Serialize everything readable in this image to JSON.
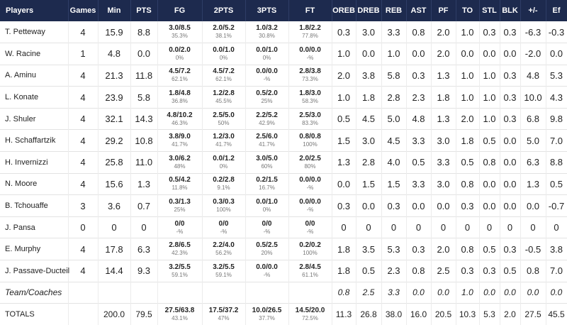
{
  "headers": [
    "Players",
    "Games",
    "Min",
    "PTS",
    "FG",
    "2PTS",
    "3PTS",
    "FT",
    "OREB",
    "DREB",
    "REB",
    "AST",
    "PF",
    "TO",
    "STL",
    "BLK",
    "+/-",
    "Ef"
  ],
  "players": [
    {
      "name": "T. Petteway",
      "games": "4",
      "min": "15.9",
      "pts": "8.8",
      "fg": {
        "m": "3.0/8.5",
        "p": "35.3%"
      },
      "p2": {
        "m": "2.0/5.2",
        "p": "38.1%"
      },
      "p3": {
        "m": "1.0/3.2",
        "p": "30.8%"
      },
      "ft": {
        "m": "1.8/2.2",
        "p": "77.8%"
      },
      "oreb": "0.3",
      "dreb": "3.0",
      "reb": "3.3",
      "ast": "0.8",
      "pf": "2.0",
      "to": "1.0",
      "stl": "0.3",
      "blk": "0.3",
      "pm": "-6.3",
      "ef": "-0.3"
    },
    {
      "name": "W. Racine",
      "games": "1",
      "min": "4.8",
      "pts": "0.0",
      "fg": {
        "m": "0.0/2.0",
        "p": "0%"
      },
      "p2": {
        "m": "0.0/1.0",
        "p": "0%"
      },
      "p3": {
        "m": "0.0/1.0",
        "p": "0%"
      },
      "ft": {
        "m": "0.0/0.0",
        "p": "-%"
      },
      "oreb": "1.0",
      "dreb": "0.0",
      "reb": "1.0",
      "ast": "0.0",
      "pf": "2.0",
      "to": "0.0",
      "stl": "0.0",
      "blk": "0.0",
      "pm": "-2.0",
      "ef": "0.0"
    },
    {
      "name": "A. Aminu",
      "games": "4",
      "min": "21.3",
      "pts": "11.8",
      "fg": {
        "m": "4.5/7.2",
        "p": "62.1%"
      },
      "p2": {
        "m": "4.5/7.2",
        "p": "62.1%"
      },
      "p3": {
        "m": "0.0/0.0",
        "p": "-%"
      },
      "ft": {
        "m": "2.8/3.8",
        "p": "73.3%"
      },
      "oreb": "2.0",
      "dreb": "3.8",
      "reb": "5.8",
      "ast": "0.3",
      "pf": "1.3",
      "to": "1.0",
      "stl": "1.0",
      "blk": "0.3",
      "pm": "4.8",
      "ef": "5.3"
    },
    {
      "name": "L. Konate",
      "games": "4",
      "min": "23.9",
      "pts": "5.8",
      "fg": {
        "m": "1.8/4.8",
        "p": "36.8%"
      },
      "p2": {
        "m": "1.2/2.8",
        "p": "45.5%"
      },
      "p3": {
        "m": "0.5/2.0",
        "p": "25%"
      },
      "ft": {
        "m": "1.8/3.0",
        "p": "58.3%"
      },
      "oreb": "1.0",
      "dreb": "1.8",
      "reb": "2.8",
      "ast": "2.3",
      "pf": "1.8",
      "to": "1.0",
      "stl": "1.0",
      "blk": "0.3",
      "pm": "10.0",
      "ef": "4.3"
    },
    {
      "name": "J. Shuler",
      "games": "4",
      "min": "32.1",
      "pts": "14.3",
      "fg": {
        "m": "4.8/10.2",
        "p": "46.3%"
      },
      "p2": {
        "m": "2.5/5.0",
        "p": "50%"
      },
      "p3": {
        "m": "2.2/5.2",
        "p": "42.9%"
      },
      "ft": {
        "m": "2.5/3.0",
        "p": "83.3%"
      },
      "oreb": "0.5",
      "dreb": "4.5",
      "reb": "5.0",
      "ast": "4.8",
      "pf": "1.3",
      "to": "2.0",
      "stl": "1.0",
      "blk": "0.3",
      "pm": "6.8",
      "ef": "9.8"
    },
    {
      "name": "H. Schaffartzik",
      "games": "4",
      "min": "29.2",
      "pts": "10.8",
      "fg": {
        "m": "3.8/9.0",
        "p": "41.7%"
      },
      "p2": {
        "m": "1.2/3.0",
        "p": "41.7%"
      },
      "p3": {
        "m": "2.5/6.0",
        "p": "41.7%"
      },
      "ft": {
        "m": "0.8/0.8",
        "p": "100%"
      },
      "oreb": "1.5",
      "dreb": "3.0",
      "reb": "4.5",
      "ast": "3.3",
      "pf": "3.0",
      "to": "1.8",
      "stl": "0.5",
      "blk": "0.0",
      "pm": "5.0",
      "ef": "7.0"
    },
    {
      "name": "H. Invernizzi",
      "games": "4",
      "min": "25.8",
      "pts": "11.0",
      "fg": {
        "m": "3.0/6.2",
        "p": "48%"
      },
      "p2": {
        "m": "0.0/1.2",
        "p": "0%"
      },
      "p3": {
        "m": "3.0/5.0",
        "p": "60%"
      },
      "ft": {
        "m": "2.0/2.5",
        "p": "80%"
      },
      "oreb": "1.3",
      "dreb": "2.8",
      "reb": "4.0",
      "ast": "0.5",
      "pf": "3.3",
      "to": "0.5",
      "stl": "0.8",
      "blk": "0.0",
      "pm": "6.3",
      "ef": "8.8"
    },
    {
      "name": "N. Moore",
      "games": "4",
      "min": "15.6",
      "pts": "1.3",
      "fg": {
        "m": "0.5/4.2",
        "p": "11.8%"
      },
      "p2": {
        "m": "0.2/2.8",
        "p": "9.1%"
      },
      "p3": {
        "m": "0.2/1.5",
        "p": "16.7%"
      },
      "ft": {
        "m": "0.0/0.0",
        "p": "-%"
      },
      "oreb": "0.0",
      "dreb": "1.5",
      "reb": "1.5",
      "ast": "3.3",
      "pf": "3.0",
      "to": "0.8",
      "stl": "0.0",
      "blk": "0.0",
      "pm": "1.3",
      "ef": "0.5"
    },
    {
      "name": "B. Tchouaffe",
      "games": "3",
      "min": "3.6",
      "pts": "0.7",
      "fg": {
        "m": "0.3/1.3",
        "p": "25%"
      },
      "p2": {
        "m": "0.3/0.3",
        "p": "100%"
      },
      "p3": {
        "m": "0.0/1.0",
        "p": "0%"
      },
      "ft": {
        "m": "0.0/0.0",
        "p": "-%"
      },
      "oreb": "0.3",
      "dreb": "0.0",
      "reb": "0.3",
      "ast": "0.0",
      "pf": "0.0",
      "to": "0.3",
      "stl": "0.0",
      "blk": "0.0",
      "pm": "0.0",
      "ef": "-0.7"
    },
    {
      "name": "J. Pansa",
      "games": "0",
      "min": "0",
      "pts": "0",
      "fg": {
        "m": "0/0",
        "p": "-%"
      },
      "p2": {
        "m": "0/0",
        "p": "-%"
      },
      "p3": {
        "m": "0/0",
        "p": "-%"
      },
      "ft": {
        "m": "0/0",
        "p": "-%"
      },
      "oreb": "0",
      "dreb": "0",
      "reb": "0",
      "ast": "0",
      "pf": "0",
      "to": "0",
      "stl": "0",
      "blk": "0",
      "pm": "0",
      "ef": "0"
    },
    {
      "name": "E. Murphy",
      "games": "4",
      "min": "17.8",
      "pts": "6.3",
      "fg": {
        "m": "2.8/6.5",
        "p": "42.3%"
      },
      "p2": {
        "m": "2.2/4.0",
        "p": "56.2%"
      },
      "p3": {
        "m": "0.5/2.5",
        "p": "20%"
      },
      "ft": {
        "m": "0.2/0.2",
        "p": "100%"
      },
      "oreb": "1.8",
      "dreb": "3.5",
      "reb": "5.3",
      "ast": "0.3",
      "pf": "2.0",
      "to": "0.8",
      "stl": "0.5",
      "blk": "0.3",
      "pm": "-0.5",
      "ef": "3.8"
    },
    {
      "name": "J. Passave-Ducteil",
      "games": "4",
      "min": "14.4",
      "pts": "9.3",
      "fg": {
        "m": "3.2/5.5",
        "p": "59.1%"
      },
      "p2": {
        "m": "3.2/5.5",
        "p": "59.1%"
      },
      "p3": {
        "m": "0.0/0.0",
        "p": "-%"
      },
      "ft": {
        "m": "2.8/4.5",
        "p": "61.1%"
      },
      "oreb": "1.8",
      "dreb": "0.5",
      "reb": "2.3",
      "ast": "0.8",
      "pf": "2.5",
      "to": "0.3",
      "stl": "0.3",
      "blk": "0.5",
      "pm": "0.8",
      "ef": "7.0"
    }
  ],
  "team": {
    "name": "Team/Coaches",
    "oreb": "0.8",
    "dreb": "2.5",
    "reb": "3.3",
    "ast": "0.0",
    "pf": "0.0",
    "to": "1.0",
    "stl": "0.0",
    "blk": "0.0",
    "pm": "0.0",
    "ef": "0.0"
  },
  "totals": {
    "name": "TOTALS",
    "min": "200.0",
    "pts": "79.5",
    "fg": {
      "m": "27.5/63.8",
      "p": "43.1%"
    },
    "p2": {
      "m": "17.5/37.2",
      "p": "47%"
    },
    "p3": {
      "m": "10.0/26.5",
      "p": "37.7%"
    },
    "ft": {
      "m": "14.5/20.0",
      "p": "72.5%"
    },
    "oreb": "11.3",
    "dreb": "26.8",
    "reb": "38.0",
    "ast": "16.0",
    "pf": "20.5",
    "to": "10.3",
    "stl": "5.3",
    "blk": "2.0",
    "pm": "27.5",
    "ef": "45.5"
  }
}
